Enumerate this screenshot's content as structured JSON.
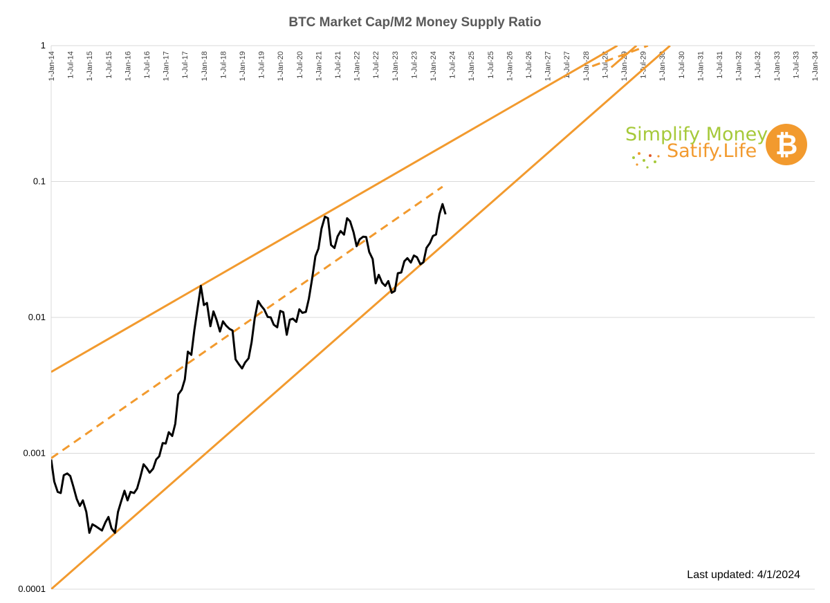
{
  "chart_data": {
    "type": "line",
    "title": "BTC Market Cap/M2 Money Supply Ratio",
    "y_scale": "log",
    "ylim": [
      0.0001,
      1
    ],
    "y_ticks": [
      "1",
      "0.1",
      "0.01",
      "0.001",
      "0.0001"
    ],
    "x_range": [
      "2014-01-01",
      "2034-01-01"
    ],
    "x_ticks": [
      "1-Jan-14",
      "1-Jul-14",
      "1-Jan-15",
      "1-Jul-15",
      "1-Jan-16",
      "1-Jul-16",
      "1-Jan-17",
      "1-Jul-17",
      "1-Jan-18",
      "1-Jul-18",
      "1-Jan-19",
      "1-Jul-19",
      "1-Jan-20",
      "1-Jul-20",
      "1-Jan-21",
      "1-Jul-21",
      "1-Jan-22",
      "1-Jul-22",
      "1-Jan-23",
      "1-Jul-23",
      "1-Jan-24",
      "1-Jul-24",
      "1-Jan-25",
      "1-Jul-25",
      "1-Jan-26",
      "1-Jul-26",
      "1-Jan-27",
      "1-Jul-27",
      "1-Jan-28",
      "1-Jul-28",
      "1-Jan-29",
      "1-Jul-29",
      "1-Jan-30",
      "1-Jul-30",
      "1-Jan-31",
      "1-Jul-31",
      "1-Jan-32",
      "1-Jul-32",
      "1-Jan-33",
      "1-Jul-33",
      "1-Jan-34"
    ],
    "series": [
      {
        "name": "BTC Market Cap/M2 Ratio",
        "color": "#000000",
        "style": "solid",
        "points": [
          [
            2014.0,
            0.0009
          ],
          [
            2014.08,
            0.00062
          ],
          [
            2014.17,
            0.00052
          ],
          [
            2014.25,
            0.00051
          ],
          [
            2014.33,
            0.00069
          ],
          [
            2014.42,
            0.00071
          ],
          [
            2014.5,
            0.00068
          ],
          [
            2014.58,
            0.00057
          ],
          [
            2014.67,
            0.00046
          ],
          [
            2014.75,
            0.00041
          ],
          [
            2014.83,
            0.00045
          ],
          [
            2014.92,
            0.00037
          ],
          [
            2015.0,
            0.00026
          ],
          [
            2015.08,
            0.0003
          ],
          [
            2015.17,
            0.00029
          ],
          [
            2015.25,
            0.00028
          ],
          [
            2015.33,
            0.00027
          ],
          [
            2015.42,
            0.00031
          ],
          [
            2015.5,
            0.00034
          ],
          [
            2015.58,
            0.00028
          ],
          [
            2015.67,
            0.00026
          ],
          [
            2015.75,
            0.00037
          ],
          [
            2015.83,
            0.00044
          ],
          [
            2015.92,
            0.00053
          ],
          [
            2016.0,
            0.00045
          ],
          [
            2016.08,
            0.00052
          ],
          [
            2016.17,
            0.00051
          ],
          [
            2016.25,
            0.00055
          ],
          [
            2016.33,
            0.00066
          ],
          [
            2016.42,
            0.00083
          ],
          [
            2016.5,
            0.00078
          ],
          [
            2016.58,
            0.00072
          ],
          [
            2016.67,
            0.00077
          ],
          [
            2016.75,
            0.0009
          ],
          [
            2016.83,
            0.00095
          ],
          [
            2016.92,
            0.00119
          ],
          [
            2017.0,
            0.00118
          ],
          [
            2017.08,
            0.00143
          ],
          [
            2017.17,
            0.00134
          ],
          [
            2017.25,
            0.00165
          ],
          [
            2017.33,
            0.00271
          ],
          [
            2017.42,
            0.00294
          ],
          [
            2017.5,
            0.00349
          ],
          [
            2017.58,
            0.0056
          ],
          [
            2017.67,
            0.0053
          ],
          [
            2017.75,
            0.00806
          ],
          [
            2017.83,
            0.01145
          ],
          [
            2017.92,
            0.01706
          ],
          [
            2018.0,
            0.01233
          ],
          [
            2018.08,
            0.01277
          ],
          [
            2018.17,
            0.00861
          ],
          [
            2018.25,
            0.01107
          ],
          [
            2018.33,
            0.00963
          ],
          [
            2018.42,
            0.00787
          ],
          [
            2018.5,
            0.00935
          ],
          [
            2018.58,
            0.00871
          ],
          [
            2018.67,
            0.00823
          ],
          [
            2018.75,
            0.00801
          ],
          [
            2018.83,
            0.00491
          ],
          [
            2018.92,
            0.0045
          ],
          [
            2019.0,
            0.00421
          ],
          [
            2019.08,
            0.00466
          ],
          [
            2019.17,
            0.005
          ],
          [
            2019.25,
            0.00658
          ],
          [
            2019.33,
            0.00982
          ],
          [
            2019.42,
            0.0132
          ],
          [
            2019.5,
            0.01218
          ],
          [
            2019.58,
            0.01143
          ],
          [
            2019.67,
            0.01008
          ],
          [
            2019.75,
            0.01
          ],
          [
            2019.83,
            0.00883
          ],
          [
            2019.92,
            0.00846
          ],
          [
            2020.0,
            0.01117
          ],
          [
            2020.08,
            0.01092
          ],
          [
            2020.17,
            0.00745
          ],
          [
            2020.25,
            0.00962
          ],
          [
            2020.33,
            0.00978
          ],
          [
            2020.42,
            0.00927
          ],
          [
            2020.5,
            0.01147
          ],
          [
            2020.58,
            0.01081
          ],
          [
            2020.67,
            0.01098
          ],
          [
            2020.75,
            0.01376
          ],
          [
            2020.83,
            0.01889
          ],
          [
            2020.92,
            0.02818
          ],
          [
            2021.0,
            0.03206
          ],
          [
            2021.08,
            0.04498
          ],
          [
            2021.17,
            0.05517
          ],
          [
            2021.25,
            0.05365
          ],
          [
            2021.33,
            0.03413
          ],
          [
            2021.42,
            0.03244
          ],
          [
            2021.5,
            0.0394
          ],
          [
            2021.58,
            0.0432
          ],
          [
            2021.67,
            0.04065
          ],
          [
            2021.75,
            0.05365
          ],
          [
            2021.83,
            0.05094
          ],
          [
            2021.92,
            0.04229
          ],
          [
            2022.0,
            0.03345
          ],
          [
            2022.08,
            0.03755
          ],
          [
            2022.17,
            0.03925
          ],
          [
            2022.25,
            0.03906
          ],
          [
            2022.33,
            0.03033
          ],
          [
            2022.42,
            0.0269
          ],
          [
            2022.5,
            0.0178
          ],
          [
            2022.58,
            0.02058
          ],
          [
            2022.67,
            0.01794
          ],
          [
            2022.75,
            0.01707
          ],
          [
            2022.83,
            0.01853
          ],
          [
            2022.92,
            0.01517
          ],
          [
            2023.0,
            0.01566
          ],
          [
            2023.08,
            0.02114
          ],
          [
            2023.17,
            0.02142
          ],
          [
            2023.25,
            0.0259
          ],
          [
            2023.33,
            0.0273
          ],
          [
            2023.42,
            0.02532
          ],
          [
            2023.5,
            0.02854
          ],
          [
            2023.58,
            0.02775
          ],
          [
            2023.67,
            0.02459
          ],
          [
            2023.75,
            0.02545
          ],
          [
            2023.83,
            0.03245
          ],
          [
            2023.92,
            0.03528
          ],
          [
            2024.0,
            0.03977
          ],
          [
            2024.08,
            0.04077
          ],
          [
            2024.17,
            0.05769
          ],
          [
            2024.25,
            0.06827
          ],
          [
            2024.33,
            0.05735
          ]
        ]
      },
      {
        "name": "Upper trend line",
        "color": "#f29a2e",
        "style": "solid",
        "points": [
          [
            2014.0,
            0.00397
          ],
          [
            2028.83,
            1.0
          ]
        ]
      },
      {
        "name": "Middle trend line",
        "color": "#f29a2e",
        "style": "dashed",
        "points": [
          [
            2014.0,
            0.00092
          ],
          [
            2024.25,
            0.0916
          ]
        ]
      },
      {
        "name": "Middle trend line extension",
        "color": "#f29a2e",
        "style": "dashed",
        "points": [
          [
            2028.17,
            0.7063
          ],
          [
            2029.63,
            1.0
          ]
        ]
      },
      {
        "name": "Lower trend line",
        "color": "#f29a2e",
        "style": "solid",
        "points": [
          [
            2014.0,
            0.0001
          ],
          [
            2030.21,
            1.0
          ]
        ]
      },
      {
        "name": "Upper trend line (second)",
        "color": "#f29a2e",
        "style": "solid",
        "points": [
          [
            2028.67,
            0.6918
          ],
          [
            2029.33,
            1.0
          ]
        ]
      }
    ],
    "annotations": [
      "Last updated: 4/1/2024"
    ],
    "grid": "horizontal",
    "legend": "none"
  },
  "branding": {
    "line1": "Simplify Money",
    "line2": "Satify.Life",
    "badge_symbol": "₿",
    "badge_name": "bitcoin-icon",
    "green": "#a6c93a",
    "orange": "#f29a2e"
  }
}
